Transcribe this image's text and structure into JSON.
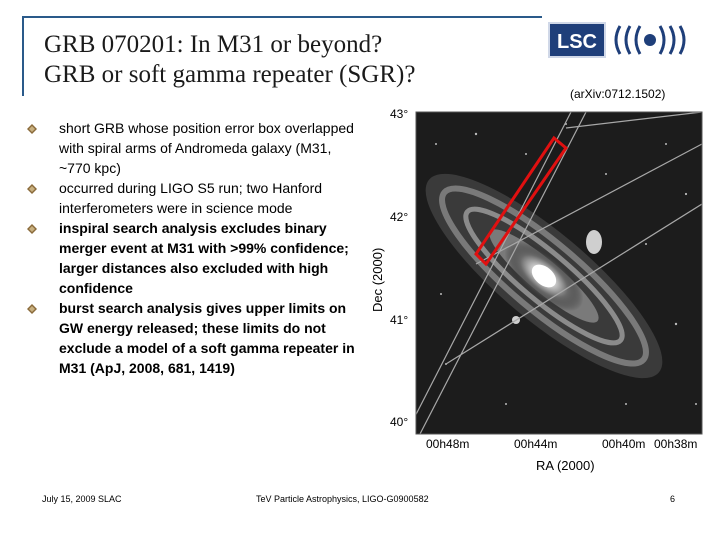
{
  "title": {
    "line1": "GRB 070201:  In M31 or beyond?",
    "line2": "GRB or soft gamma repeater (SGR)?"
  },
  "logo": {
    "text": "LSC",
    "icon": "ligo-waves-icon",
    "accent": "#1f3f7a"
  },
  "citation": "(arXiv:0712.1502)",
  "bullets": [
    {
      "text": "short GRB whose position error box overlapped with spiral arms of Andromeda galaxy (M31, ~770 kpc)",
      "bold": false
    },
    {
      "text": "occurred during LIGO S5 run; two Hanford interferometers were in science mode",
      "bold": false
    },
    {
      "text": "inspiral search analysis excludes binary merger event at M31 with >99% confidence; larger distances also excluded with high confidence",
      "bold": true
    },
    {
      "text": "burst search analysis gives upper limits on GW energy released; these limits do not exclude a model of a soft gamma repeater in M31 (ApJ, 2008, 681, 1419)",
      "bold": true
    }
  ],
  "chart_data": {
    "type": "scatter",
    "xlabel": "RA (2000)",
    "ylabel": "Dec (2000)",
    "x_ticks": [
      "00h48m",
      "00h44m",
      "00h40m",
      "00h38m"
    ],
    "y_ticks": [
      "43°",
      "42°",
      "41°",
      "40°"
    ],
    "error_box_color": "#e01010"
  },
  "footer": {
    "date": "July 15, 2009  SLAC",
    "conference": "TeV Particle Astrophysics,  LIGO-G0900582",
    "page": "6"
  }
}
